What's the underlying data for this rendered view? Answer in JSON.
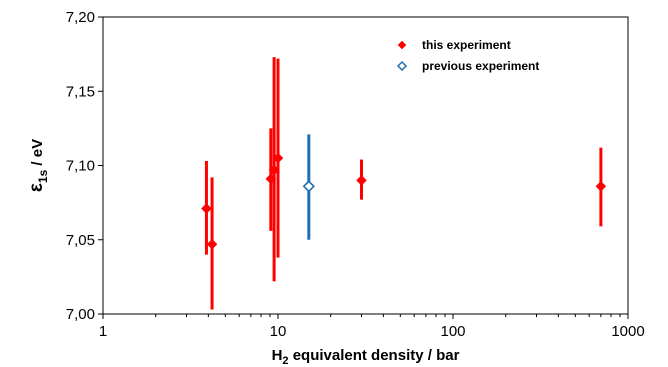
{
  "chart_data": {
    "type": "scatter",
    "xscale": "log",
    "xlim": [
      1,
      1000
    ],
    "ylim": [
      7.0,
      7.2
    ],
    "grid": false,
    "legend_position": "top-right",
    "xlabel": "H2 equivalent density / bar",
    "xlabel_parts": {
      "pre": "H",
      "sub": "2",
      "post": " equivalent density / bar"
    },
    "ylabel": "ε1s / eV",
    "ylabel_parts": {
      "sym": "ε",
      "sub": "1s",
      "post": " / eV"
    },
    "x_ticks": [
      {
        "value": 1,
        "label": "1"
      },
      {
        "value": 10,
        "label": "10"
      },
      {
        "value": 100,
        "label": "100"
      },
      {
        "value": 1000,
        "label": "1000"
      }
    ],
    "y_ticks": [
      {
        "value": 7.0,
        "label": "7,00"
      },
      {
        "value": 7.05,
        "label": "7,05"
      },
      {
        "value": 7.1,
        "label": "7,10"
      },
      {
        "value": 7.15,
        "label": "7,15"
      },
      {
        "value": 7.2,
        "label": "7,20"
      }
    ],
    "series": [
      {
        "name": "this experiment",
        "color": "#ff0000",
        "marker": "filled-diamond",
        "points": [
          {
            "x": 3.9,
            "y": 7.071,
            "ylow": 7.04,
            "yhigh": 7.103
          },
          {
            "x": 4.2,
            "y": 7.047,
            "ylow": 7.003,
            "yhigh": 7.092
          },
          {
            "x": 9.1,
            "y": 7.091,
            "ylow": 7.056,
            "yhigh": 7.125
          },
          {
            "x": 9.5,
            "y": 7.097,
            "ylow": 7.022,
            "yhigh": 7.173
          },
          {
            "x": 10.0,
            "y": 7.105,
            "ylow": 7.038,
            "yhigh": 7.172
          },
          {
            "x": 30,
            "y": 7.09,
            "ylow": 7.077,
            "yhigh": 7.104
          },
          {
            "x": 700,
            "y": 7.086,
            "ylow": 7.059,
            "yhigh": 7.112
          }
        ]
      },
      {
        "name": "previous experiment",
        "color": "#1f6fb4",
        "marker": "open-diamond",
        "points": [
          {
            "x": 15,
            "y": 7.086,
            "ylow": 7.05,
            "yhigh": 7.121
          }
        ]
      }
    ]
  }
}
